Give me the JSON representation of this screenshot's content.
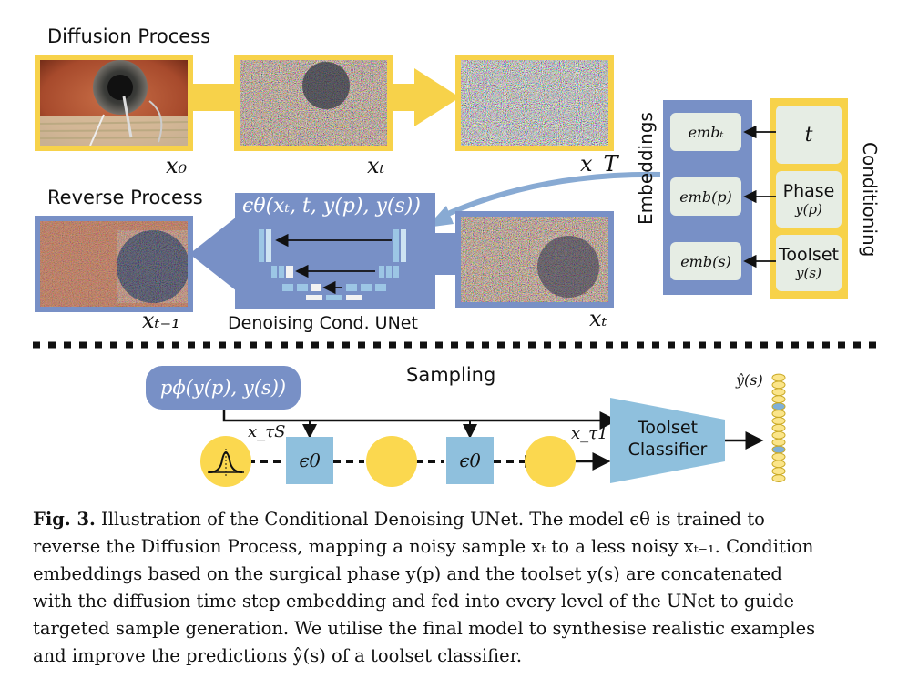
{
  "titles": {
    "diffusion": "Diffusion Process",
    "reverse": "Reverse Process",
    "sampling": "Sampling",
    "unet": "Denoising Cond. UNet"
  },
  "labels": {
    "x0": "x₀",
    "xt_top": "xₜ",
    "xT": "x_T",
    "xt_minus_1": "xₜ₋₁",
    "xt_right": "xₜ",
    "eps_formula": "ϵθ(xₜ, t, y(p), y(s))"
  },
  "embeddings": {
    "title": "Embeddings",
    "items": [
      "embₜ",
      "emb(p)",
      "emb(s)"
    ]
  },
  "conditioning": {
    "title": "Conditioning",
    "t": "t",
    "phase_label": "Phase",
    "phase_var": "y(p)",
    "toolset_label": "Toolset",
    "toolset_var": "y(s)"
  },
  "sampling": {
    "prior": "pϕ(y(p), y(s))",
    "x_tau_s": "x_τS",
    "x_tau_1": "x_τ1",
    "eps1": "ϵθ",
    "eps2": "ϵθ",
    "classifier": "Toolset Classifier",
    "y_hat": "ŷ(s)"
  },
  "caption": {
    "fig": "Fig. 3.",
    "line1": "Illustration of the Conditional Denoising UNet. The model ϵθ is trained to",
    "line2": "reverse the Diffusion Process, mapping a noisy sample xₜ to a less noisy xₜ₋₁. Condition",
    "line3": "embeddings based on the surgical phase y(p) and the toolset y(s) are concatenated",
    "line4": "with the diffusion time step embedding and fed into every level of the UNet to guide",
    "line5": "targeted sample generation. We utilise the final model to synthesise realistic examples",
    "line6": "and improve the predictions ŷ(s) of a toolset classifier."
  },
  "colors": {
    "yellow": "#f7d24a",
    "blue": "#7890c6",
    "light_blue": "#8fc0dd",
    "box_green": "#e6ede4"
  }
}
